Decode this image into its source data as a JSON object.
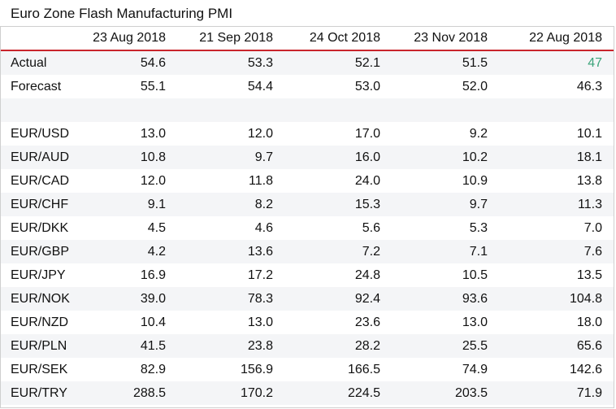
{
  "title": "Euro Zone Flash Manufacturing PMI",
  "accent_color": "#c9252c",
  "positive_color": "#3aa37a",
  "table": {
    "header_blank": "",
    "columns": [
      "23 Aug 2018",
      "21 Sep 2018",
      "24 Oct 2018",
      "23 Nov 2018",
      "22 Aug 2018"
    ],
    "rows": [
      {
        "label": "Actual",
        "values": [
          "54.6",
          "53.3",
          "52.1",
          "51.5",
          "47"
        ]
      },
      {
        "label": "Forecast",
        "values": [
          "55.1",
          "54.4",
          "53.0",
          "52.0",
          "46.3"
        ]
      },
      {
        "label": "",
        "values": [
          "",
          "",
          "",
          "",
          ""
        ]
      },
      {
        "label": "EUR/USD",
        "values": [
          "13.0",
          "12.0",
          "17.0",
          "9.2",
          "10.1"
        ]
      },
      {
        "label": "EUR/AUD",
        "values": [
          "10.8",
          "9.7",
          "16.0",
          "10.2",
          "18.1"
        ]
      },
      {
        "label": "EUR/CAD",
        "values": [
          "12.0",
          "11.8",
          "24.0",
          "10.9",
          "13.8"
        ]
      },
      {
        "label": "EUR/CHF",
        "values": [
          "9.1",
          "8.2",
          "15.3",
          "9.7",
          "11.3"
        ]
      },
      {
        "label": "EUR/DKK",
        "values": [
          "4.5",
          "4.6",
          "5.6",
          "5.3",
          "7.0"
        ]
      },
      {
        "label": "EUR/GBP",
        "values": [
          "4.2",
          "13.6",
          "7.2",
          "7.1",
          "7.6"
        ]
      },
      {
        "label": "EUR/JPY",
        "values": [
          "16.9",
          "17.2",
          "24.8",
          "10.5",
          "13.5"
        ]
      },
      {
        "label": "EUR/NOK",
        "values": [
          "39.0",
          "78.3",
          "92.4",
          "93.6",
          "104.8"
        ]
      },
      {
        "label": "EUR/NZD",
        "values": [
          "10.4",
          "13.0",
          "23.6",
          "13.0",
          "18.0"
        ]
      },
      {
        "label": "EUR/PLN",
        "values": [
          "41.5",
          "23.8",
          "28.2",
          "25.5",
          "65.6"
        ]
      },
      {
        "label": "EUR/SEK",
        "values": [
          "82.9",
          "156.9",
          "166.5",
          "74.9",
          "142.6"
        ]
      },
      {
        "label": "EUR/TRY",
        "values": [
          "288.5",
          "170.2",
          "224.5",
          "203.5",
          "71.9"
        ]
      }
    ]
  }
}
